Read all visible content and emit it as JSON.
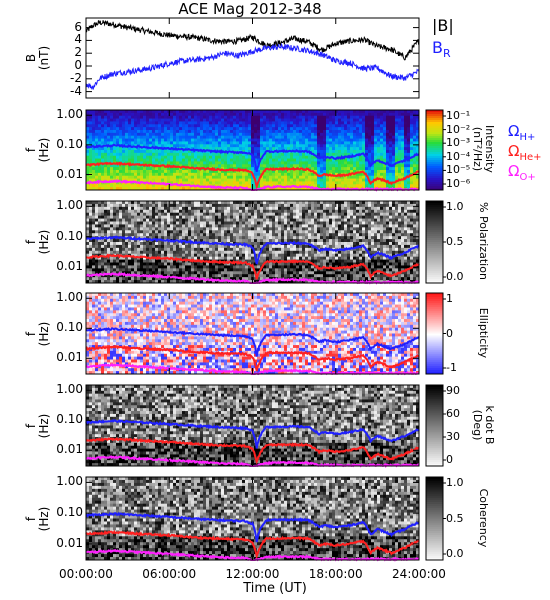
{
  "title": "ACE Mag 2012-348",
  "x_axis": {
    "label": "Time (UT)",
    "ticks": [
      "00:00:00",
      "06:00:00",
      "12:00:00",
      "18:00:00",
      "24:00:00"
    ],
    "hours": [
      0,
      6,
      12,
      18,
      24
    ]
  },
  "legend_b": {
    "total_label": "|B|",
    "radial_label": "B",
    "radial_sub": "R",
    "total_color": "#000000",
    "radial_color": "#2020ff"
  },
  "gyro_legend": [
    {
      "symbol": "Ω",
      "sub": "H+",
      "color": "#2020ff"
    },
    {
      "symbol": "Ω",
      "sub": "He+",
      "color": "#ff2020"
    },
    {
      "symbol": "Ω",
      "sub": "O+",
      "color": "#ff20ff"
    }
  ],
  "panels": [
    {
      "ylabel": "B\n(nT)",
      "yticks": [
        "6",
        "4",
        "2",
        "0",
        "-2",
        "-4"
      ]
    },
    {
      "ylabel": "f\n(Hz)",
      "yticks": [
        "1.00",
        "0.10",
        "0.01"
      ],
      "colorbar_label": "Intensity\n(nT²/Hz)",
      "colorbar_ticks": [
        "10⁻¹",
        "10⁻²",
        "10⁻³",
        "10⁻⁴",
        "10⁻⁵",
        "10⁻⁶"
      ],
      "colormap": "rainbow"
    },
    {
      "ylabel": "f\n(Hz)",
      "yticks": [
        "1.00",
        "0.10",
        "0.01"
      ],
      "colorbar_label": "% Polarization",
      "colorbar_ticks": [
        "1.0",
        "0.5",
        "0.0"
      ],
      "colormap": "gray"
    },
    {
      "ylabel": "f\n(Hz)",
      "yticks": [
        "1.00",
        "0.10",
        "0.01"
      ],
      "colorbar_label": "Ellipticity",
      "colorbar_ticks": [
        "1",
        "0",
        "-1"
      ],
      "colormap": "redblue"
    },
    {
      "ylabel": "f\n(Hz)",
      "yticks": [
        "1.00",
        "0.10",
        "0.01"
      ],
      "colorbar_label": "k dot B\n(Deg)",
      "colorbar_ticks": [
        "90",
        "60",
        "30",
        "0"
      ],
      "colormap": "gray"
    },
    {
      "ylabel": "f\n(Hz)",
      "yticks": [
        "1.00",
        "0.10",
        "0.01"
      ],
      "colorbar_label": "Coherency",
      "colorbar_ticks": [
        "1.0",
        "0.5",
        "0.0"
      ],
      "colormap": "gray"
    }
  ],
  "chart_data": {
    "type": "line",
    "title": "ACE Mag 2012-348",
    "xlabel": "Time (UT)",
    "xlim": [
      0,
      24
    ],
    "magnetic_field": {
      "ylabel": "B (nT)",
      "ylim": [
        -5,
        7.5
      ],
      "series": [
        {
          "name": "|B|",
          "color": "#000000",
          "x": [
            0,
            0.5,
            1,
            2,
            3,
            4,
            5,
            6,
            7,
            8,
            9,
            10,
            11,
            12,
            13,
            14,
            15,
            16,
            17,
            18,
            19,
            20,
            21,
            22,
            23,
            24
          ],
          "values": [
            5.4,
            6.3,
            6.8,
            6.5,
            6.0,
            5.6,
            5.2,
            4.8,
            4.6,
            4.4,
            4.0,
            3.8,
            3.9,
            4.5,
            3.2,
            3.6,
            4.3,
            3.8,
            2.5,
            3.5,
            3.9,
            4.1,
            3.1,
            2.6,
            1.3,
            4.0
          ]
        },
        {
          "name": "B_R",
          "color": "#2020ff",
          "x": [
            0,
            0.5,
            1,
            2,
            3,
            4,
            5,
            6,
            7,
            8,
            9,
            10,
            11,
            12,
            13,
            14,
            15,
            16,
            17,
            18,
            19,
            20,
            21,
            22,
            23,
            24
          ],
          "values": [
            -2.8,
            -3.3,
            -1.9,
            -1.2,
            -0.9,
            -0.6,
            -0.2,
            0.4,
            0.8,
            1.0,
            1.3,
            2.0,
            1.6,
            2.3,
            2.8,
            3.0,
            2.8,
            2.4,
            1.8,
            0.8,
            0.5,
            -0.4,
            -0.3,
            -1.6,
            -1.9,
            -0.8
          ]
        }
      ]
    },
    "spectrogram_frequency": {
      "ylabel": "f (Hz)",
      "yscale": "log",
      "ylim": [
        0.003,
        1.5
      ],
      "series": [
        {
          "name": "Ω_H+",
          "color": "#2020ff",
          "x": [
            0,
            2,
            4,
            6,
            8,
            10,
            11.5,
            12,
            12.3,
            13,
            15,
            16,
            16.8,
            17.2,
            18,
            19,
            20,
            20.5,
            21,
            22,
            23,
            24
          ],
          "values": [
            0.085,
            0.095,
            0.085,
            0.075,
            0.065,
            0.058,
            0.055,
            0.045,
            0.012,
            0.06,
            0.062,
            0.06,
            0.035,
            0.04,
            0.035,
            0.04,
            0.05,
            0.02,
            0.03,
            0.02,
            0.03,
            0.05
          ]
        },
        {
          "name": "Ω_He+",
          "color": "#ff2020",
          "x": [
            0,
            2,
            4,
            6,
            8,
            10,
            11.5,
            12,
            12.3,
            13,
            15,
            16,
            16.8,
            17.2,
            18,
            19,
            20,
            20.5,
            21,
            22,
            23,
            24
          ],
          "values": [
            0.021,
            0.024,
            0.021,
            0.019,
            0.016,
            0.0145,
            0.014,
            0.011,
            0.004,
            0.015,
            0.0155,
            0.015,
            0.009,
            0.01,
            0.009,
            0.01,
            0.0125,
            0.005,
            0.0075,
            0.005,
            0.0075,
            0.0125
          ]
        },
        {
          "name": "Ω_O+",
          "color": "#ff20ff",
          "x": [
            0,
            2,
            4,
            6,
            8,
            10,
            11.5,
            12,
            12.3,
            13,
            15,
            16,
            16.8,
            17.2,
            18,
            19,
            20,
            20.5,
            21,
            22,
            23,
            24
          ],
          "values": [
            0.0053,
            0.006,
            0.0053,
            0.0047,
            0.0041,
            0.0036,
            0.0035,
            0.0028,
            0.003,
            0.0038,
            0.0039,
            0.0038,
            0.0032,
            0.0032,
            0.0032,
            0.0032,
            0.0032,
            0.0032,
            0.0032,
            0.0032,
            0.0032,
            0.0032
          ]
        }
      ]
    }
  }
}
